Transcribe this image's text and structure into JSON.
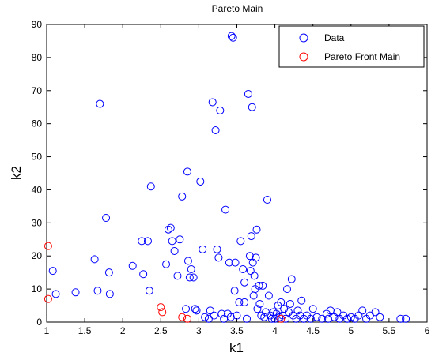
{
  "chart_data": {
    "type": "scatter",
    "title": "Pareto Main",
    "xlabel": "k1",
    "ylabel": "k2",
    "xlim": [
      1,
      6
    ],
    "ylim": [
      0,
      90
    ],
    "xticks": [
      1,
      1.5,
      2,
      2.5,
      3,
      3.5,
      4,
      4.5,
      5,
      5.5,
      6
    ],
    "yticks": [
      0,
      10,
      20,
      30,
      40,
      50,
      60,
      70,
      80,
      90
    ],
    "xtick_labels": [
      "1",
      "1.5",
      "2",
      "2.5",
      "3",
      "3.5",
      "4",
      "4.5",
      "5",
      "5.5",
      "6"
    ],
    "ytick_labels": [
      "0",
      "10",
      "20",
      "30",
      "40",
      "50",
      "60",
      "70",
      "80",
      "90"
    ],
    "grid": false,
    "legend_position": "top-right",
    "series": [
      {
        "name": "Data",
        "color": "#0000ff",
        "marker": "circle-open",
        "points": [
          [
            1.08,
            15.5
          ],
          [
            1.12,
            8.5
          ],
          [
            1.38,
            9.0
          ],
          [
            1.63,
            19.0
          ],
          [
            1.67,
            9.5
          ],
          [
            1.7,
            66.0
          ],
          [
            1.78,
            31.5
          ],
          [
            1.82,
            15.0
          ],
          [
            1.83,
            8.5
          ],
          [
            2.13,
            17.0
          ],
          [
            2.25,
            24.5
          ],
          [
            2.27,
            14.5
          ],
          [
            2.33,
            24.5
          ],
          [
            2.35,
            9.5
          ],
          [
            2.37,
            41.0
          ],
          [
            2.57,
            17.5
          ],
          [
            2.6,
            28.0
          ],
          [
            2.63,
            28.5
          ],
          [
            2.65,
            24.5
          ],
          [
            2.68,
            21.5
          ],
          [
            2.72,
            14.0
          ],
          [
            2.75,
            25.0
          ],
          [
            2.78,
            38.0
          ],
          [
            2.83,
            4.0
          ],
          [
            2.85,
            45.5
          ],
          [
            2.86,
            18.5
          ],
          [
            2.88,
            13.5
          ],
          [
            2.9,
            16.0
          ],
          [
            2.93,
            13.5
          ],
          [
            2.95,
            4.0
          ],
          [
            2.97,
            3.5
          ],
          [
            3.02,
            42.5
          ],
          [
            3.05,
            22.0
          ],
          [
            3.08,
            1.5
          ],
          [
            3.13,
            1.0
          ],
          [
            3.15,
            3.5
          ],
          [
            3.18,
            66.5
          ],
          [
            3.2,
            2.0
          ],
          [
            3.22,
            58.0
          ],
          [
            3.24,
            22.0
          ],
          [
            3.26,
            19.5
          ],
          [
            3.28,
            64.0
          ],
          [
            3.3,
            2.5
          ],
          [
            3.33,
            1.0
          ],
          [
            3.35,
            34.0
          ],
          [
            3.38,
            2.5
          ],
          [
            3.4,
            18.0
          ],
          [
            3.42,
            1.5
          ],
          [
            3.43,
            86.5
          ],
          [
            3.45,
            86.0
          ],
          [
            3.47,
            9.5
          ],
          [
            3.48,
            18.0
          ],
          [
            3.5,
            2.0
          ],
          [
            3.53,
            6.0
          ],
          [
            3.55,
            24.5
          ],
          [
            3.58,
            16.0
          ],
          [
            3.6,
            12.0
          ],
          [
            3.6,
            6.0
          ],
          [
            3.63,
            1.0
          ],
          [
            3.65,
            69.0
          ],
          [
            3.67,
            20.0
          ],
          [
            3.68,
            15.5
          ],
          [
            3.69,
            26.0
          ],
          [
            3.7,
            65.0
          ],
          [
            3.71,
            18.0
          ],
          [
            3.72,
            8.0
          ],
          [
            3.73,
            14.0
          ],
          [
            3.74,
            10.0
          ],
          [
            3.75,
            19.5
          ],
          [
            3.76,
            28.0
          ],
          [
            3.77,
            4.0
          ],
          [
            3.79,
            11.0
          ],
          [
            3.8,
            5.5
          ],
          [
            3.82,
            2.0
          ],
          [
            3.84,
            11.0
          ],
          [
            3.86,
            1.5
          ],
          [
            3.88,
            3.0
          ],
          [
            3.9,
            37.0
          ],
          [
            3.92,
            8.0
          ],
          [
            3.94,
            2.0
          ],
          [
            3.96,
            1.0
          ],
          [
            3.98,
            3.0
          ],
          [
            4.0,
            1.0
          ],
          [
            4.02,
            2.5
          ],
          [
            4.04,
            5.0
          ],
          [
            4.06,
            1.5
          ],
          [
            4.08,
            6.0
          ],
          [
            4.1,
            2.0
          ],
          [
            4.12,
            4.0
          ],
          [
            4.14,
            1.0
          ],
          [
            4.16,
            10.0
          ],
          [
            4.18,
            3.0
          ],
          [
            4.2,
            5.5
          ],
          [
            4.22,
            13.0
          ],
          [
            4.24,
            2.0
          ],
          [
            4.28,
            1.0
          ],
          [
            4.3,
            3.5
          ],
          [
            4.33,
            2.0
          ],
          [
            4.35,
            6.5
          ],
          [
            4.38,
            1.0
          ],
          [
            4.42,
            2.0
          ],
          [
            4.47,
            1.0
          ],
          [
            4.5,
            4.0
          ],
          [
            4.55,
            1.5
          ],
          [
            4.62,
            1.0
          ],
          [
            4.68,
            2.5
          ],
          [
            4.7,
            1.0
          ],
          [
            4.73,
            3.5
          ],
          [
            4.78,
            1.5
          ],
          [
            4.82,
            3.0
          ],
          [
            4.85,
            1.0
          ],
          [
            4.9,
            2.0
          ],
          [
            4.95,
            1.0
          ],
          [
            5.0,
            1.5
          ],
          [
            5.05,
            1.0
          ],
          [
            5.1,
            2.0
          ],
          [
            5.15,
            3.5
          ],
          [
            5.2,
            1.0
          ],
          [
            5.25,
            2.0
          ],
          [
            5.32,
            3.0
          ],
          [
            5.38,
            1.5
          ],
          [
            5.65,
            1.0
          ],
          [
            5.72,
            1.0
          ]
        ]
      },
      {
        "name": "Pareto Front Main",
        "color": "#ff0000",
        "marker": "circle-open",
        "points": [
          [
            1.02,
            23.0
          ],
          [
            1.02,
            7.0
          ],
          [
            2.5,
            4.5
          ],
          [
            2.52,
            3.0
          ],
          [
            2.78,
            1.5
          ],
          [
            2.85,
            1.0
          ],
          [
            4.08,
            1.0
          ]
        ]
      }
    ]
  }
}
